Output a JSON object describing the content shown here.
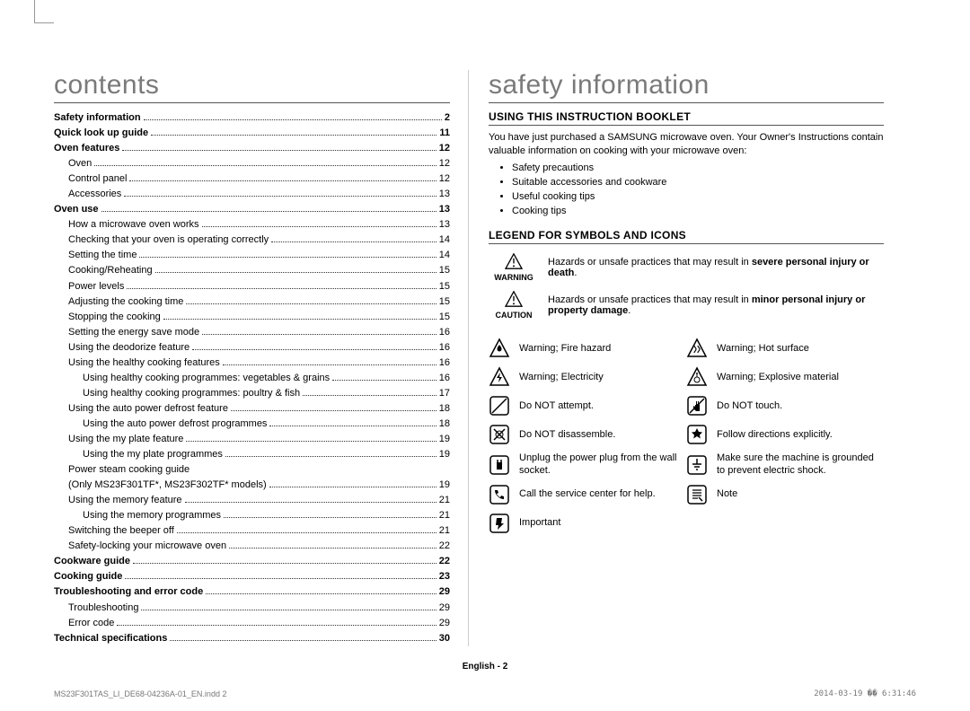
{
  "leftTitle": "contents",
  "rightTitle": "safety information",
  "toc": [
    {
      "label": "Safety information",
      "page": "2",
      "bold": true,
      "level": 0
    },
    {
      "label": "Quick look up guide",
      "page": "11",
      "bold": true,
      "level": 0
    },
    {
      "label": "Oven features",
      "page": "12",
      "bold": true,
      "level": 0
    },
    {
      "label": "Oven",
      "page": "12",
      "bold": false,
      "level": 1
    },
    {
      "label": "Control panel",
      "page": "12",
      "bold": false,
      "level": 1
    },
    {
      "label": "Accessories",
      "page": "13",
      "bold": false,
      "level": 1
    },
    {
      "label": "Oven use",
      "page": "13",
      "bold": true,
      "level": 0
    },
    {
      "label": "How a microwave oven works",
      "page": "13",
      "bold": false,
      "level": 1
    },
    {
      "label": "Checking that your oven is operating correctly",
      "page": "14",
      "bold": false,
      "level": 1
    },
    {
      "label": "Setting the time",
      "page": "14",
      "bold": false,
      "level": 1
    },
    {
      "label": "Cooking/Reheating",
      "page": "15",
      "bold": false,
      "level": 1
    },
    {
      "label": "Power levels",
      "page": "15",
      "bold": false,
      "level": 1
    },
    {
      "label": "Adjusting the cooking time",
      "page": "15",
      "bold": false,
      "level": 1
    },
    {
      "label": "Stopping the cooking",
      "page": "15",
      "bold": false,
      "level": 1
    },
    {
      "label": "Setting the energy save mode",
      "page": "16",
      "bold": false,
      "level": 1
    },
    {
      "label": "Using the deodorize feature",
      "page": "16",
      "bold": false,
      "level": 1
    },
    {
      "label": "Using the healthy cooking features",
      "page": "16",
      "bold": false,
      "level": 1
    },
    {
      "label": "Using healthy cooking programmes: vegetables & grains",
      "page": "16",
      "bold": false,
      "level": 2
    },
    {
      "label": "Using healthy cooking programmes: poultry & fish",
      "page": "17",
      "bold": false,
      "level": 2
    },
    {
      "label": "Using the auto power defrost feature",
      "page": "18",
      "bold": false,
      "level": 1
    },
    {
      "label": "Using the auto power defrost programmes",
      "page": "18",
      "bold": false,
      "level": 2
    },
    {
      "label": "Using the my plate feature",
      "page": "19",
      "bold": false,
      "level": 1
    },
    {
      "label": "Using the my plate programmes",
      "page": "19",
      "bold": false,
      "level": 2
    },
    {
      "label": "Power steam cooking guide",
      "page": "",
      "bold": false,
      "level": 1,
      "nodots": true
    },
    {
      "label": "(Only MS23F301TF*, MS23F302TF* models)",
      "page": "19",
      "bold": false,
      "level": 1
    },
    {
      "label": "Using the memory feature",
      "page": "21",
      "bold": false,
      "level": 1
    },
    {
      "label": "Using the memory programmes",
      "page": "21",
      "bold": false,
      "level": 2
    },
    {
      "label": "Switching the beeper off",
      "page": "21",
      "bold": false,
      "level": 1
    },
    {
      "label": "Safety-locking your microwave oven",
      "page": "22",
      "bold": false,
      "level": 1
    },
    {
      "label": "Cookware guide",
      "page": "22",
      "bold": true,
      "level": 0
    },
    {
      "label": "Cooking guide",
      "page": "23",
      "bold": true,
      "level": 0
    },
    {
      "label": "Troubleshooting and error code",
      "page": "29",
      "bold": true,
      "level": 0
    },
    {
      "label": "Troubleshooting",
      "page": "29",
      "bold": false,
      "level": 1
    },
    {
      "label": "Error code",
      "page": "29",
      "bold": false,
      "level": 1
    },
    {
      "label": "Technical specifications",
      "page": "30",
      "bold": true,
      "level": 0
    }
  ],
  "usingHeading": "USING THIS INSTRUCTION BOOKLET",
  "usingIntro": "You have just purchased a SAMSUNG microwave oven. Your Owner's Instructions contain valuable information on cooking with your microwave oven:",
  "usingBullets": [
    "Safety precautions",
    "Suitable accessories and cookware",
    "Useful cooking tips",
    "Cooking tips"
  ],
  "legendHeading": "LEGEND FOR SYMBOLS AND ICONS",
  "legendRows": [
    {
      "symbol": "WARNING",
      "text_pre": "Hazards or unsafe practices that may result in ",
      "bold": "severe personal injury or death",
      "text_post": "."
    },
    {
      "symbol": "CAUTION",
      "text_pre": "Hazards or unsafe practices that may result in ",
      "bold": "minor personal injury or property damage",
      "text_post": "."
    }
  ],
  "iconGrid": {
    "left": [
      {
        "name": "fire-icon",
        "text": "Warning; Fire hazard"
      },
      {
        "name": "electricity-icon",
        "text": "Warning; Electricity"
      },
      {
        "name": "no-attempt-icon",
        "text": "Do NOT attempt."
      },
      {
        "name": "no-disassemble-icon",
        "text": "Do NOT disassemble."
      },
      {
        "name": "unplug-icon",
        "text": "Unplug the power plug from the wall socket."
      },
      {
        "name": "phone-icon",
        "text": "Call the service center for help."
      },
      {
        "name": "important-icon",
        "text": "Important"
      }
    ],
    "right": [
      {
        "name": "hot-surface-icon",
        "text": "Warning; Hot surface"
      },
      {
        "name": "explosive-icon",
        "text": "Warning; Explosive material"
      },
      {
        "name": "no-touch-icon",
        "text": "Do NOT touch."
      },
      {
        "name": "follow-directions-icon",
        "text": "Follow directions explicitly."
      },
      {
        "name": "ground-icon",
        "text": "Make sure the machine is grounded to prevent electric shock."
      },
      {
        "name": "note-icon",
        "text": "Note"
      }
    ]
  },
  "footerCenter": "English - 2",
  "footerLeft": "MS23F301TAS_LI_DE68-04236A-01_EN.indd   2",
  "footerRight": "2014-03-19   �� 6:31:46",
  "colors": {
    "heading": "#7a7a7a",
    "rule": "#555",
    "text": "#000",
    "meta": "#777"
  }
}
